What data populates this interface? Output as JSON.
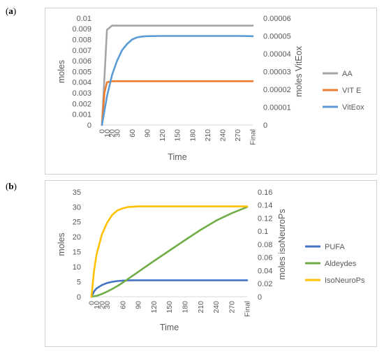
{
  "charts": [
    {
      "panel_label": "a",
      "chart_data": {
        "type": "line",
        "x_ticks": [
          "0",
          "30",
          "60",
          "90",
          "120",
          "150",
          "180",
          "210",
          "240",
          "270",
          "Final"
        ],
        "x_ticks_partial": [
          "10",
          "20"
        ],
        "xlabel": "Time",
        "ylabel": "moles",
        "y2label": "moles VitEox",
        "ylim": [
          0,
          0.01
        ],
        "y_ticks": [
          "0",
          "0.001",
          "0.002",
          "0.003",
          "0.004",
          "0.005",
          "0.006",
          "0.007",
          "0.008",
          "0.009",
          "0.01"
        ],
        "y2lim": [
          0,
          6e-05
        ],
        "y2_ticks": [
          "0",
          "0.00001",
          "0.00002",
          "0.00003",
          "0.00004",
          "0.00005",
          "0.00006"
        ],
        "grid": false,
        "legend_position": "right",
        "series": [
          {
            "name": "AA",
            "axis": "left",
            "color": "#a5a5a5",
            "x": [
              0,
              10,
              20,
              300
            ],
            "y": [
              0,
              0.0089,
              0.0093,
              0.0093
            ]
          },
          {
            "name": "VIT E",
            "axis": "left",
            "color": "#ed7d31",
            "x": [
              0,
              5,
              10,
              20,
              300
            ],
            "y": [
              0,
              0.003,
              0.004,
              0.0041,
              0.0041
            ]
          },
          {
            "name": "VitEox",
            "axis": "right",
            "color": "#5b9bd5",
            "x": [
              0,
              10,
              20,
              30,
              40,
              50,
              60,
              70,
              80,
              90,
              120,
              150,
              180,
              210,
              240,
              270,
              300
            ],
            "y": [
              0,
              1.6e-05,
              2.8e-05,
              3.6e-05,
              4.2e-05,
              4.55e-05,
              4.8e-05,
              4.92e-05,
              4.97e-05,
              4.99e-05,
              5e-05,
              5e-05,
              5e-05,
              5e-05,
              5e-05,
              5e-05,
              4.99e-05
            ]
          }
        ]
      }
    },
    {
      "panel_label": "b",
      "chart_data": {
        "type": "line",
        "x_ticks": [
          "0",
          "30",
          "60",
          "90",
          "120",
          "150",
          "180",
          "210",
          "240",
          "270",
          "Final"
        ],
        "x_ticks_partial": [
          "10",
          "20"
        ],
        "xlabel": "Time",
        "ylabel": "moles",
        "y2label": "moles isoNeuroPs",
        "ylim": [
          0,
          35
        ],
        "y_ticks": [
          "0",
          "5",
          "10",
          "15",
          "20",
          "25",
          "30",
          "35"
        ],
        "y2lim": [
          0,
          0.16
        ],
        "y2_ticks": [
          "0",
          "0.02",
          "0.04",
          "0.06",
          "0.08",
          "0.1",
          "0.12",
          "0.14",
          "0.16"
        ],
        "grid": false,
        "legend_position": "right",
        "series": [
          {
            "name": "PUFA",
            "axis": "left",
            "color": "#4472c4",
            "x": [
              0,
              5,
              10,
              20,
              30,
              40,
              50,
              60,
              70,
              80,
              90,
              120,
              150,
              180,
              210,
              240,
              270,
              300
            ],
            "y": [
              0,
              1.8,
              2.8,
              3.9,
              4.6,
              5.0,
              5.25,
              5.4,
              5.45,
              5.5,
              5.5,
              5.5,
              5.5,
              5.5,
              5.5,
              5.5,
              5.5,
              5.5
            ]
          },
          {
            "name": "Aldeydes",
            "axis": "left",
            "color": "#70ad47",
            "x": [
              0,
              10,
              20,
              30,
              40,
              50,
              60,
              90,
              120,
              150,
              180,
              210,
              240,
              270,
              300
            ],
            "y": [
              0,
              0.3,
              0.9,
              1.7,
              2.6,
              3.6,
              4.7,
              8.3,
              11.9,
              15.4,
              18.9,
              22.3,
              25.4,
              27.9,
              30.0
            ]
          },
          {
            "name": "IsoNeuroPs",
            "axis": "right",
            "color": "#ffc000",
            "x": [
              0,
              5,
              10,
              20,
              30,
              40,
              50,
              60,
              70,
              80,
              90,
              120,
              150,
              180,
              210,
              240,
              270,
              300
            ],
            "y": [
              0,
              0.04,
              0.065,
              0.095,
              0.113,
              0.125,
              0.132,
              0.135,
              0.137,
              0.1375,
              0.138,
              0.138,
              0.138,
              0.138,
              0.138,
              0.138,
              0.138,
              0.138
            ]
          }
        ]
      }
    }
  ]
}
